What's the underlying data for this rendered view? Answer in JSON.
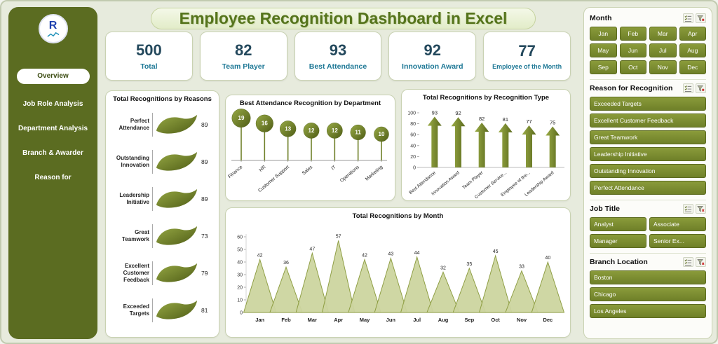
{
  "title": "Employee Recognition Dashboard in Excel",
  "sidebar": {
    "logo": "R",
    "items": [
      {
        "label": "Overview",
        "active": true
      },
      {
        "label": "Job Role Analysis",
        "active": false
      },
      {
        "label": "Department Analysis",
        "active": false
      },
      {
        "label": "Branch & Awarder",
        "active": false
      },
      {
        "label": "Reason for",
        "active": false
      }
    ]
  },
  "kpis": [
    {
      "value": "500",
      "label": "Total"
    },
    {
      "value": "82",
      "label": "Team Player"
    },
    {
      "value": "93",
      "label": "Best Attendance"
    },
    {
      "value": "92",
      "label": "Innovation Award"
    },
    {
      "value": "77",
      "label": "Employee of the Month"
    }
  ],
  "chart_data": [
    {
      "name": "reasons",
      "type": "bar",
      "orientation": "horizontal",
      "title": "Total Recognitions by Reasons",
      "categories": [
        "Perfect Attendance",
        "Outstanding Innovation",
        "Leadership Initiative",
        "Great Teamwork",
        "Excellent Customer Feedback",
        "Exceeded Targets"
      ],
      "values": [
        89,
        89,
        89,
        73,
        79,
        81
      ]
    },
    {
      "name": "best-attendance-by-department",
      "type": "scatter",
      "title": "Best Attendance Recognition by Department",
      "categories": [
        "Finance",
        "HR",
        "Customer Support",
        "Sales",
        "IT",
        "Operations",
        "Marketing"
      ],
      "values": [
        19,
        16,
        13,
        12,
        12,
        11,
        10
      ]
    },
    {
      "name": "recognitions-by-type",
      "type": "bar",
      "title": "Total Recognitions by Recognition Type",
      "categories": [
        "Best Attendance",
        "Innovation Award",
        "Team Player",
        "Customer Service...",
        "Employee of the...",
        "Leadership Award"
      ],
      "values": [
        93,
        92,
        82,
        81,
        77,
        75
      ],
      "ylim": [
        0,
        100
      ],
      "yticks": [
        0,
        20,
        40,
        60,
        80,
        100
      ]
    },
    {
      "name": "recognitions-by-month",
      "type": "area",
      "title": "Total Recognitions by Month",
      "categories": [
        "Jan",
        "Feb",
        "Mar",
        "Apr",
        "May",
        "Jun",
        "Jul",
        "Aug",
        "Sep",
        "Oct",
        "Nov",
        "Dec"
      ],
      "values": [
        42,
        36,
        47,
        57,
        42,
        43,
        44,
        32,
        35,
        45,
        33,
        40
      ],
      "ylim": [
        0,
        60
      ],
      "yticks": [
        0,
        10,
        20,
        30,
        40,
        50,
        60
      ]
    }
  ],
  "slicers": [
    {
      "title": "Month",
      "layout": "grid-4",
      "items": [
        "Jan",
        "Feb",
        "Mar",
        "Apr",
        "May",
        "Jun",
        "Jul",
        "Aug",
        "Sep",
        "Oct",
        "Nov",
        "Dec"
      ]
    },
    {
      "title": "Reason for Recognition",
      "layout": "list",
      "items": [
        "Exceeded Targets",
        "Excellent Customer Feedback",
        "Great Teamwork",
        "Leadership Initiative",
        "Outstanding Innovation",
        "Perfect Attendance"
      ]
    },
    {
      "title": "Job Title",
      "layout": "grid-2",
      "items": [
        "Analyst",
        "Associate",
        "Manager",
        "Senior Ex..."
      ]
    },
    {
      "title": "Branch Location",
      "layout": "list",
      "items": [
        "Boston",
        "Chicago",
        "Los Angeles"
      ]
    }
  ],
  "colors": {
    "olive": "#6f8029",
    "olive_dark": "#55651a",
    "sidebar": "#5b6c21",
    "kpi_value": "#23485c",
    "kpi_label": "#1c7795",
    "title_text": "#55741c",
    "spike_fill": "#cdd5a0",
    "spike_line": "#8a9a3c"
  }
}
